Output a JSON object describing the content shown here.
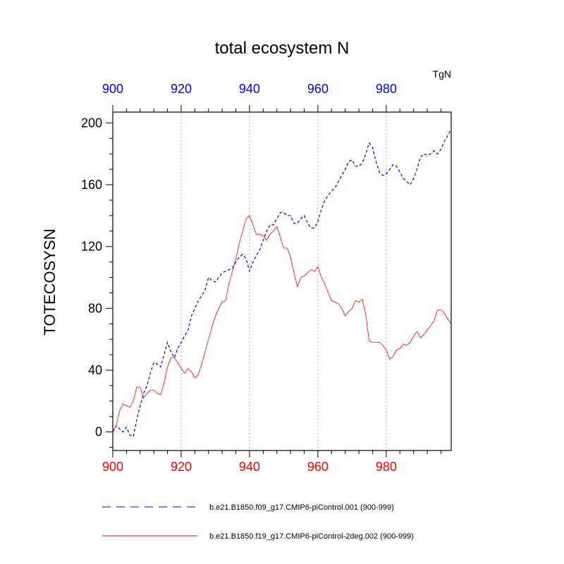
{
  "chart_data": {
    "type": "line",
    "title": "total ecosystem N",
    "units": "TgN",
    "ylabel": "TOTECOSYSN",
    "xlim": [
      900,
      999
    ],
    "ylim": [
      -12,
      207
    ],
    "xticks": [
      900,
      920,
      940,
      960,
      980
    ],
    "yticks": [
      0,
      40,
      80,
      120,
      160,
      200
    ],
    "top_axis_color": "#0000ff",
    "bottom_axis_color": "#ff0000",
    "grid_x": true,
    "legend_position": "bottom",
    "series": [
      {
        "name": "b.e21.B1850.f09_g17.CMIP6-piControl.001 (900-999)",
        "color": "#0000ff",
        "style": "dashed",
        "x": [
          900,
          901,
          902,
          903,
          904,
          905,
          906,
          907,
          908,
          909,
          910,
          911,
          912,
          913,
          914,
          915,
          916,
          917,
          918,
          919,
          920,
          921,
          922,
          923,
          924,
          925,
          926,
          927,
          928,
          929,
          930,
          931,
          932,
          933,
          934,
          935,
          936,
          937,
          938,
          939,
          940,
          941,
          942,
          943,
          944,
          945,
          946,
          947,
          948,
          949,
          950,
          951,
          952,
          953,
          954,
          955,
          956,
          957,
          958,
          959,
          960,
          961,
          962,
          963,
          964,
          965,
          966,
          967,
          968,
          969,
          970,
          971,
          972,
          973,
          974,
          975,
          976,
          977,
          978,
          979,
          980,
          981,
          982,
          983,
          984,
          985,
          986,
          987,
          988,
          989,
          990,
          991,
          992,
          993,
          994,
          995,
          996,
          997,
          998,
          999
        ],
        "y": [
          0,
          4,
          2,
          0,
          3,
          -2,
          -3,
          8,
          17,
          25,
          30,
          38,
          45,
          44,
          42,
          50,
          58,
          52,
          48,
          54,
          58,
          62,
          66,
          75,
          80,
          85,
          88,
          92,
          100,
          98,
          97,
          100,
          103,
          104,
          105,
          106,
          110,
          113,
          115,
          112,
          104,
          110,
          114,
          118,
          124,
          130,
          134,
          134,
          138,
          142,
          142,
          140,
          140,
          135,
          135,
          138,
          140,
          135,
          132,
          132,
          136,
          144,
          150,
          153,
          156,
          158,
          162,
          166,
          170,
          175,
          176,
          172,
          172,
          174,
          180,
          187,
          184,
          175,
          168,
          166,
          167,
          170,
          173,
          172,
          168,
          164,
          162,
          160,
          164,
          170,
          178,
          180,
          179,
          180,
          182,
          180,
          183,
          188,
          192,
          196
        ]
      },
      {
        "name": "b.e21.B1850.f19_g17.CMIP6-piControl-2deg.002 (900-999)",
        "color": "#ff0000",
        "style": "solid",
        "x": [
          900,
          901,
          902,
          903,
          904,
          905,
          906,
          907,
          908,
          909,
          910,
          911,
          912,
          913,
          914,
          915,
          916,
          917,
          918,
          919,
          920,
          921,
          922,
          923,
          924,
          925,
          926,
          927,
          928,
          929,
          930,
          931,
          932,
          933,
          934,
          935,
          936,
          937,
          938,
          939,
          940,
          941,
          942,
          943,
          944,
          945,
          946,
          947,
          948,
          949,
          950,
          951,
          952,
          953,
          954,
          955,
          956,
          957,
          958,
          959,
          960,
          961,
          962,
          963,
          964,
          965,
          966,
          967,
          968,
          969,
          970,
          971,
          972,
          973,
          974,
          975,
          976,
          977,
          978,
          979,
          980,
          981,
          982,
          983,
          984,
          985,
          986,
          987,
          988,
          989,
          990,
          991,
          992,
          993,
          994,
          995,
          996,
          997,
          998,
          999
        ],
        "y": [
          0,
          4,
          14,
          18,
          17,
          16,
          20,
          29,
          29,
          22,
          25,
          27,
          27,
          25,
          24,
          32,
          42,
          48,
          48,
          45,
          41,
          38,
          41,
          39,
          35,
          37,
          44,
          52,
          60,
          68,
          75,
          80,
          84,
          85,
          96,
          104,
          112,
          122,
          130,
          138,
          140,
          134,
          128,
          128,
          127,
          124,
          128,
          130,
          133,
          126,
          119,
          119,
          113,
          103,
          94,
          100,
          101,
          103,
          105,
          104,
          107,
          100,
          96,
          90,
          85,
          84,
          83,
          80,
          75,
          78,
          80,
          85,
          84,
          86,
          76,
          59,
          58,
          58,
          58,
          56,
          53,
          47,
          49,
          53,
          54,
          57,
          56,
          58,
          62,
          65,
          61,
          63,
          66,
          69,
          72,
          79,
          79,
          77,
          73,
          70
        ]
      }
    ]
  }
}
